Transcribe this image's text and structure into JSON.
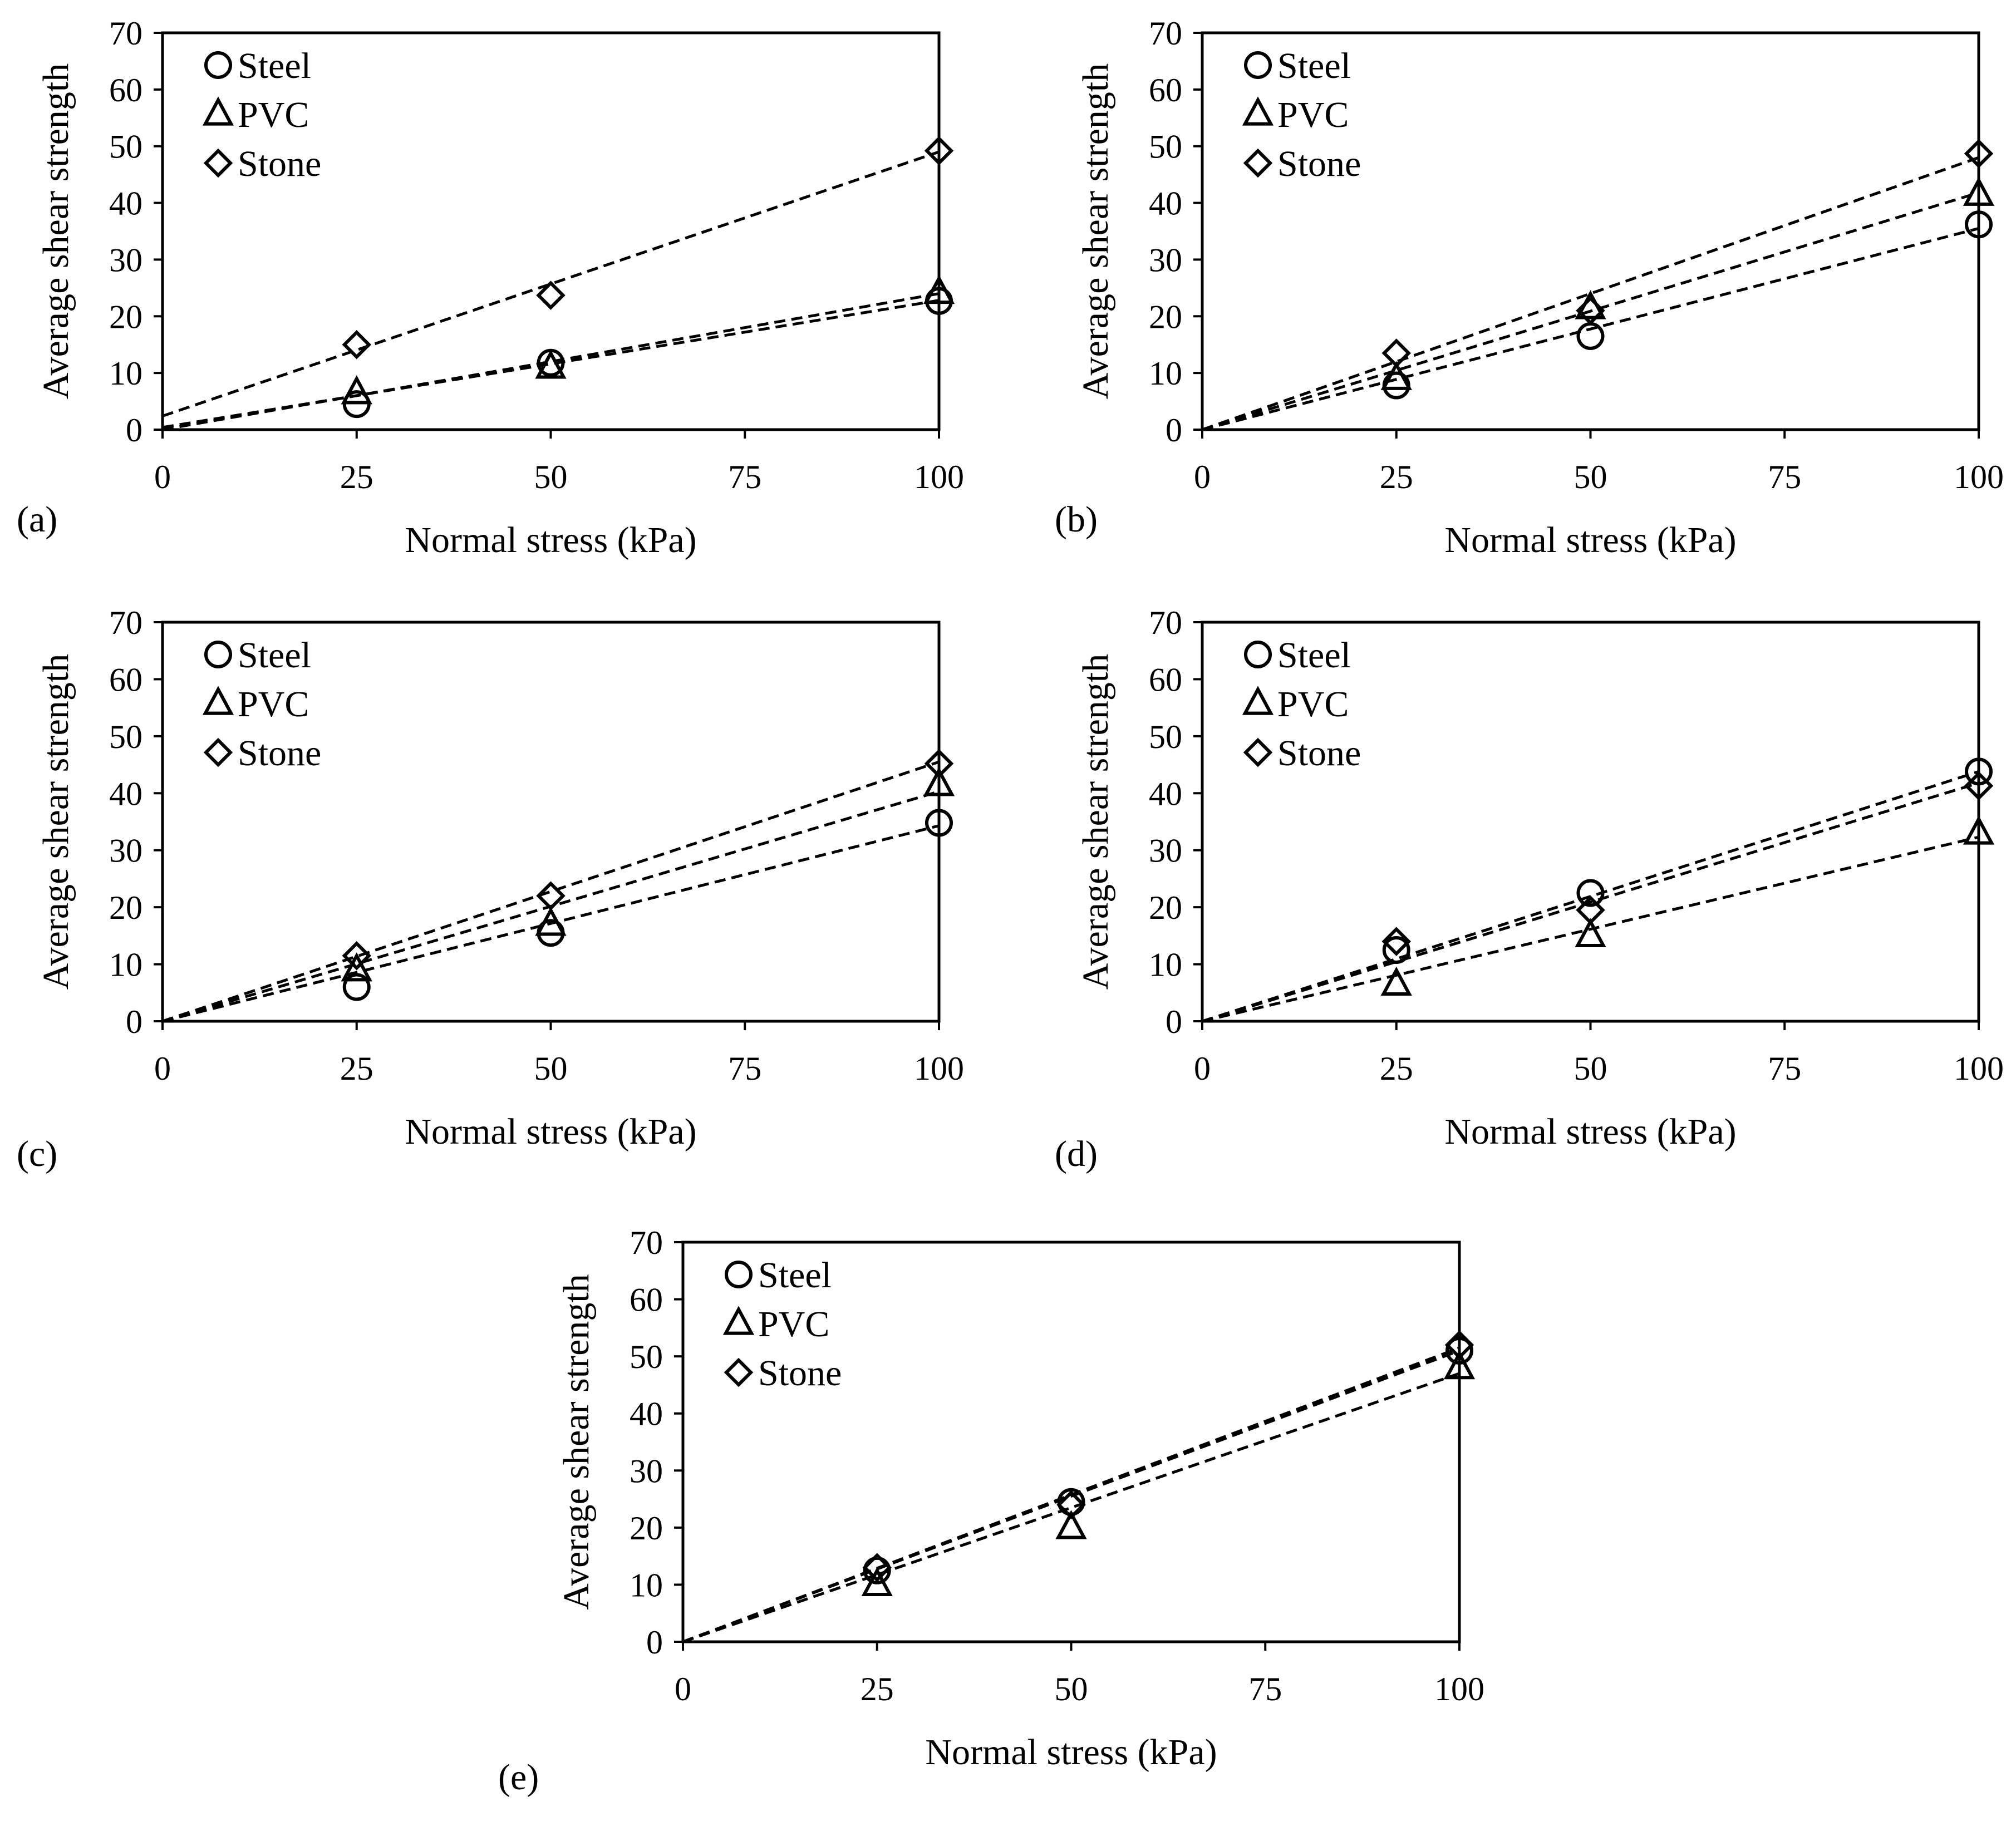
{
  "figure": {
    "panel_labels": [
      "(a)",
      "(b)",
      "(c)",
      "(d)",
      "(e)"
    ]
  },
  "style": {
    "ink": "#000000",
    "background": "#ffffff"
  },
  "chart_data": [
    {
      "type": "scatter",
      "panel": "(a)",
      "xlabel": "Normal stress (kPa)",
      "ylabel": "Average shear strength",
      "xlim": [
        0,
        100
      ],
      "ylim": [
        0,
        70
      ],
      "xticks": [
        0,
        25,
        50,
        75,
        100
      ],
      "yticks": [
        0,
        10,
        20,
        30,
        40,
        50,
        60,
        70
      ],
      "trendline_style": "dashed linear",
      "legend_position": "top-left",
      "series": [
        {
          "name": "Steel",
          "marker": "circle",
          "x": [
            25,
            50,
            100
          ],
          "y": [
            4.5,
            11.8,
            22.7
          ],
          "fit": {
            "intercept": 0.4,
            "end": 22.8
          }
        },
        {
          "name": "PVC",
          "marker": "triangle",
          "x": [
            25,
            50,
            100
          ],
          "y": [
            6.5,
            11.0,
            24.2
          ],
          "fit": {
            "intercept": 0.0,
            "end": 24.0
          }
        },
        {
          "name": "Stone",
          "marker": "diamond",
          "x": [
            25,
            50,
            100
          ],
          "y": [
            15.0,
            23.7,
            49.2
          ],
          "fit": {
            "intercept": 2.4,
            "end": 49.0
          }
        }
      ]
    },
    {
      "type": "scatter",
      "panel": "(b)",
      "xlabel": "Normal stress (kPa)",
      "ylabel": "Average shear strength",
      "xlim": [
        0,
        100
      ],
      "ylim": [
        0,
        70
      ],
      "xticks": [
        0,
        25,
        50,
        75,
        100
      ],
      "yticks": [
        0,
        10,
        20,
        30,
        40,
        50,
        60,
        70
      ],
      "trendline_style": "dashed linear",
      "legend_position": "top-left",
      "series": [
        {
          "name": "Steel",
          "marker": "circle",
          "x": [
            25,
            50,
            100
          ],
          "y": [
            7.8,
            16.5,
            36.2
          ],
          "fit": {
            "intercept": 0.0,
            "end": 35.5
          }
        },
        {
          "name": "PVC",
          "marker": "triangle",
          "x": [
            25,
            50,
            100
          ],
          "y": [
            9.0,
            21.5,
            41.5
          ],
          "fit": {
            "intercept": 0.0,
            "end": 41.8
          }
        },
        {
          "name": "Stone",
          "marker": "diamond",
          "x": [
            25,
            50,
            100
          ],
          "y": [
            13.5,
            21.0,
            48.7
          ],
          "fit": {
            "intercept": 0.0,
            "end": 48.0
          }
        }
      ]
    },
    {
      "type": "scatter",
      "panel": "(c)",
      "xlabel": "Normal stress (kPa)",
      "ylabel": "Average shear strength",
      "xlim": [
        0,
        100
      ],
      "ylim": [
        0,
        70
      ],
      "xticks": [
        0,
        25,
        50,
        75,
        100
      ],
      "yticks": [
        0,
        10,
        20,
        30,
        40,
        50,
        60,
        70
      ],
      "trendline_style": "dashed linear",
      "legend_position": "top-left",
      "series": [
        {
          "name": "Steel",
          "marker": "circle",
          "x": [
            25,
            50,
            100
          ],
          "y": [
            6.0,
            15.5,
            34.8
          ],
          "fit": {
            "intercept": 0.0,
            "end": 34.3
          }
        },
        {
          "name": "PVC",
          "marker": "triangle",
          "x": [
            25,
            50,
            100
          ],
          "y": [
            9.0,
            17.0,
            41.5
          ],
          "fit": {
            "intercept": 0.0,
            "end": 40.3
          }
        },
        {
          "name": "Stone",
          "marker": "diamond",
          "x": [
            25,
            50,
            100
          ],
          "y": [
            11.5,
            22.0,
            45.2
          ],
          "fit": {
            "intercept": 0.0,
            "end": 45.5
          }
        }
      ]
    },
    {
      "type": "scatter",
      "panel": "(d)",
      "xlabel": "Normal stress (kPa)",
      "ylabel": "Average shear strength",
      "xlim": [
        0,
        100
      ],
      "ylim": [
        0,
        70
      ],
      "xticks": [
        0,
        25,
        50,
        75,
        100
      ],
      "yticks": [
        0,
        10,
        20,
        30,
        40,
        50,
        60,
        70
      ],
      "trendline_style": "dashed linear",
      "legend_position": "top-left",
      "series": [
        {
          "name": "Steel",
          "marker": "circle",
          "x": [
            25,
            50,
            100
          ],
          "y": [
            12.5,
            22.5,
            43.8
          ],
          "fit": {
            "intercept": 0.0,
            "end": 43.8
          }
        },
        {
          "name": "PVC",
          "marker": "triangle",
          "x": [
            25,
            50,
            100
          ],
          "y": [
            6.5,
            15.0,
            33.0
          ],
          "fit": {
            "intercept": 0.0,
            "end": 32.3
          }
        },
        {
          "name": "Stone",
          "marker": "diamond",
          "x": [
            25,
            50,
            100
          ],
          "y": [
            14.0,
            19.5,
            41.3
          ],
          "fit": {
            "intercept": 0.0,
            "end": 41.8
          }
        }
      ]
    },
    {
      "type": "scatter",
      "panel": "(e)",
      "xlabel": "Normal stress (kPa)",
      "ylabel": "Average shear strength",
      "xlim": [
        0,
        100
      ],
      "ylim": [
        0,
        70
      ],
      "xticks": [
        0,
        25,
        50,
        75,
        100
      ],
      "yticks": [
        0,
        10,
        20,
        30,
        40,
        50,
        60,
        70
      ],
      "trendline_style": "dashed linear",
      "legend_position": "top-left",
      "series": [
        {
          "name": "Steel",
          "marker": "circle",
          "x": [
            25,
            50,
            100
          ],
          "y": [
            12.5,
            24.5,
            51.0
          ],
          "fit": {
            "intercept": 0.0,
            "end": 51.0
          }
        },
        {
          "name": "PVC",
          "marker": "triangle",
          "x": [
            25,
            50,
            100
          ],
          "y": [
            10.0,
            20.0,
            48.0
          ],
          "fit": {
            "intercept": 0.0,
            "end": 47.0
          }
        },
        {
          "name": "Stone",
          "marker": "diamond",
          "x": [
            25,
            50,
            100
          ],
          "y": [
            13.0,
            24.0,
            52.0
          ],
          "fit": {
            "intercept": 0.0,
            "end": 51.5
          }
        }
      ]
    }
  ]
}
